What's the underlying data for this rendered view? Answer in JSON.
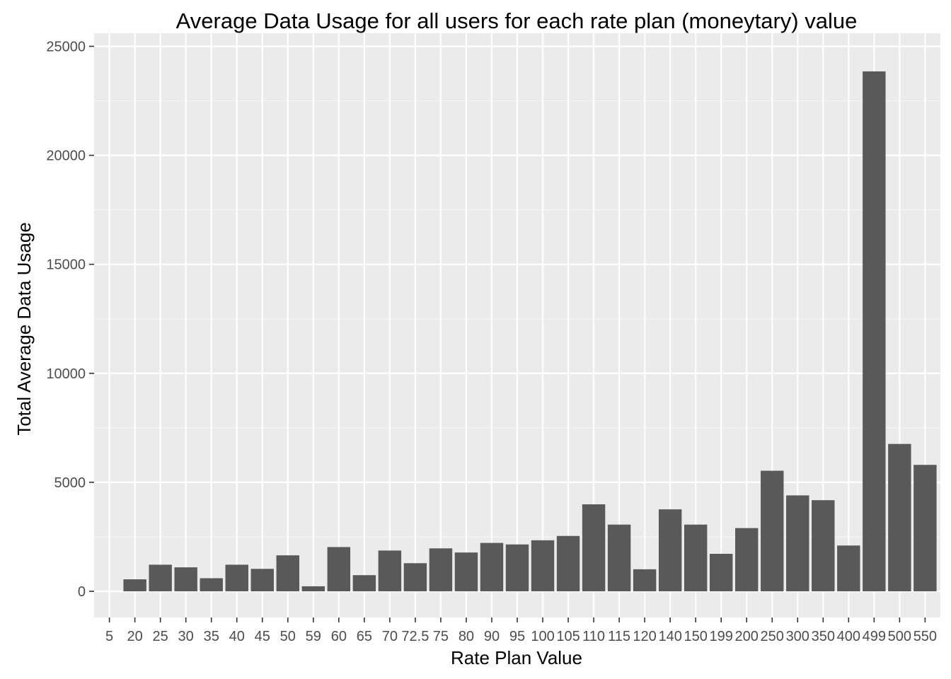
{
  "chart_data": {
    "type": "bar",
    "title": "Average Data Usage for all users for each rate plan (moneytary) value",
    "xlabel": "Rate Plan Value",
    "ylabel": "Total Average Data Usage",
    "categories": [
      "5",
      "20",
      "25",
      "30",
      "35",
      "40",
      "45",
      "50",
      "59",
      "60",
      "65",
      "70",
      "72.5",
      "75",
      "80",
      "90",
      "95",
      "100",
      "105",
      "110",
      "115",
      "120",
      "140",
      "150",
      "199",
      "200",
      "250",
      "300",
      "350",
      "400",
      "499",
      "500",
      "550"
    ],
    "values": [
      0,
      550,
      1220,
      1100,
      600,
      1220,
      1030,
      1650,
      230,
      2030,
      740,
      1870,
      1290,
      1970,
      1780,
      2220,
      2150,
      2340,
      2540,
      3990,
      3060,
      1010,
      3760,
      3060,
      1720,
      2900,
      5530,
      4400,
      4180,
      2100,
      23850,
      6760,
      5800
    ],
    "yticks": [
      0,
      5000,
      10000,
      15000,
      20000,
      25000
    ],
    "ylim": [
      -1200,
      25600
    ],
    "grid": true,
    "legend": "none",
    "colors": {
      "bar": "#595959",
      "panel": "#ebebeb",
      "grid_major": "#ffffff",
      "grid_minor": "#f5f5f5",
      "tick": "#333333"
    }
  }
}
